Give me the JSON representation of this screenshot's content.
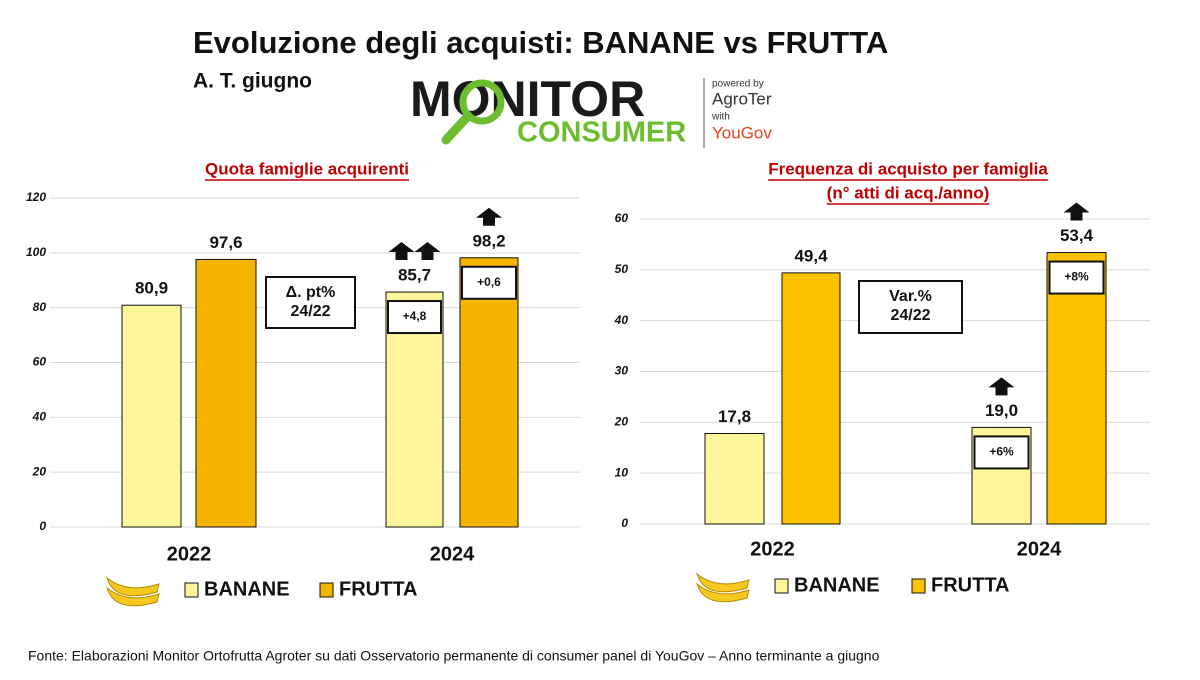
{
  "header": {
    "title": "Evoluzione degli acquisti: BANANE vs FRUTTA",
    "subtitle": "A. T. giugno",
    "logo": {
      "line1": "MONITOR",
      "line2": "CONSUMER",
      "powered": "powered by",
      "brand": "AgroTer",
      "with": "with",
      "partner": "YouGov"
    }
  },
  "chart_data": [
    {
      "type": "bar",
      "title": [
        "Quota famiglie acquirenti"
      ],
      "categories": [
        "2022",
        "2024"
      ],
      "series": [
        {
          "name": "BANANE",
          "color": "#fdf59a",
          "values": [
            80.9,
            85.7
          ],
          "value_labels": [
            "80,9",
            "85,7"
          ],
          "change_labels": [
            null,
            "+4,8"
          ],
          "arrows": [
            0,
            2
          ]
        },
        {
          "name": "FRUTTA",
          "color": "#f5b400",
          "values": [
            97.6,
            98.2
          ],
          "value_labels": [
            "97,6",
            "98,2"
          ],
          "change_labels": [
            null,
            "+0,6"
          ],
          "arrows": [
            0,
            1
          ]
        }
      ],
      "annotation": [
        "Δ. pt%",
        "24/22"
      ],
      "ylim": [
        0,
        120
      ],
      "yticks": [
        0,
        20,
        40,
        60,
        80,
        100,
        120
      ],
      "grid": true
    },
    {
      "type": "bar",
      "title": [
        "Frequenza di acquisto per famiglia",
        "(n° atti di acq./anno)"
      ],
      "categories": [
        "2022",
        "2024"
      ],
      "series": [
        {
          "name": "BANANE",
          "color": "#fdf59a",
          "values": [
            17.8,
            19.0
          ],
          "value_labels": [
            "17,8",
            "19,0"
          ],
          "change_labels": [
            null,
            "+6%"
          ],
          "arrows": [
            0,
            1
          ]
        },
        {
          "name": "FRUTTA",
          "color": "#fbc200",
          "values": [
            49.4,
            53.4
          ],
          "value_labels": [
            "49,4",
            "53,4"
          ],
          "change_labels": [
            null,
            "+8%"
          ],
          "arrows": [
            0,
            1
          ]
        }
      ],
      "annotation": [
        "Var.%",
        "24/22"
      ],
      "ylim": [
        0,
        60
      ],
      "yticks": [
        0,
        10,
        20,
        30,
        40,
        50,
        60
      ],
      "grid": true
    }
  ],
  "source": "Fonte: Elaborazioni Monitor Ortofrutta Agroter su dati Osservatorio permanente di consumer panel di YouGov  – Anno terminante a giugno"
}
